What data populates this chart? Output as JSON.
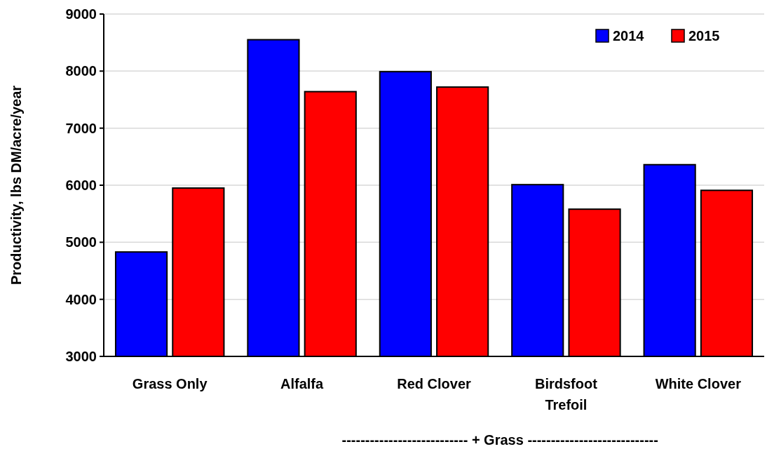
{
  "chart_data": {
    "type": "bar",
    "ylabel": "Productivity, lbs DM/acre/year",
    "categories": [
      "Grass Only",
      "Alfalfa",
      "Red Clover",
      "Birdsfoot Trefoil",
      "White Clover"
    ],
    "series": [
      {
        "name": "2014",
        "color": "#0000ff",
        "values": [
          4830,
          8550,
          7990,
          6010,
          6360
        ]
      },
      {
        "name": "2015",
        "color": "#ff0000",
        "values": [
          5950,
          7640,
          7720,
          5580,
          5910
        ]
      }
    ],
    "ylim": [
      3000,
      9000
    ],
    "yticks": [
      3000,
      4000,
      5000,
      6000,
      7000,
      8000,
      9000
    ],
    "grid": "y",
    "legend": "top right",
    "annotations": [
      "--------------------------- + Grass ----------------------------"
    ]
  }
}
